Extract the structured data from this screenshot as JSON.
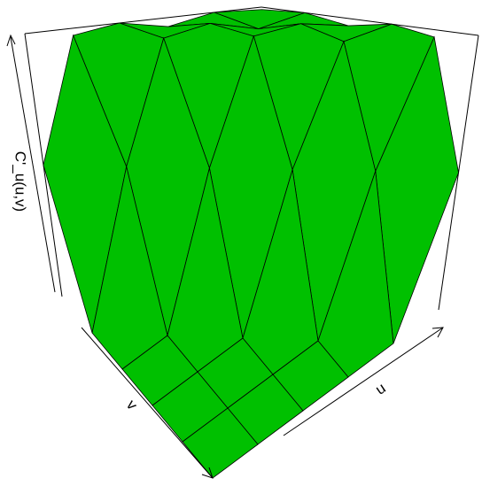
{
  "chart_data": {
    "type": "surface",
    "xlabel": "u",
    "ylabel": "v",
    "zlabel": "C'_u(u,v)",
    "x": [
      0,
      0.2,
      0.4,
      0.6,
      0.8,
      1
    ],
    "y": [
      0,
      0.2,
      0.4,
      0.6,
      0.8,
      1
    ],
    "z": [
      [
        0.5,
        0.97,
        1,
        0.95,
        1,
        0.98
      ],
      [
        0,
        0.5,
        0.96,
        1,
        0.94,
        1
      ],
      [
        0,
        0,
        0.5,
        0.97,
        1,
        0.96
      ],
      [
        0,
        0,
        0,
        0.5,
        0.95,
        1
      ],
      [
        0,
        0,
        0,
        0,
        0.5,
        0.97
      ],
      [
        0,
        0,
        0,
        0,
        0,
        0.5
      ]
    ],
    "xlim": [
      0,
      1
    ],
    "ylim": [
      0,
      1
    ],
    "zlim": [
      0,
      1
    ],
    "color": "#00c000"
  }
}
